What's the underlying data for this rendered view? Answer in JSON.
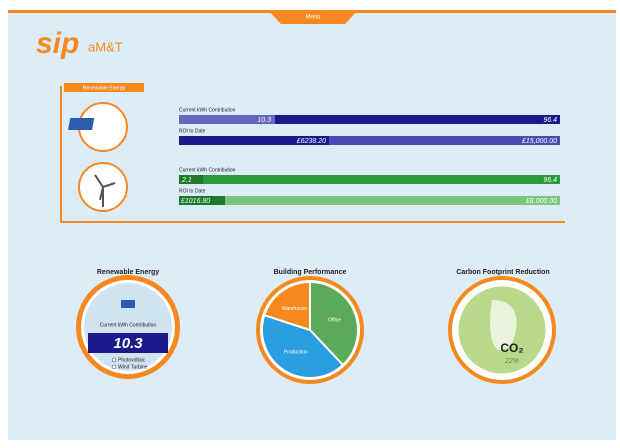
{
  "menu": "Menu",
  "logo": {
    "brand": "sip",
    "suffix": "aM&T"
  },
  "renewable_panel": {
    "title": "Renewable Energy",
    "solar": {
      "kwh_label": "Current kWh Contribution",
      "kwh_value": "10.3",
      "kwh_max": "96.4",
      "roi_label": "ROI to Date",
      "roi_value": "£6238.20",
      "roi_target": "£15,000.00"
    },
    "wind": {
      "kwh_label": "Current kWh Contribution",
      "kwh_value": "2.1",
      "kwh_max": "96.4",
      "roi_label": "ROI to Date",
      "roi_value": "£1016.80",
      "roi_target": "£8,000.00"
    }
  },
  "widgets": {
    "renewable": {
      "title": "Renewable Energy",
      "label": "Current kWh Contribution",
      "value": "10.3",
      "options": [
        "Photovoltaic",
        "Wind Turbine"
      ]
    },
    "building": {
      "title": "Building Performance",
      "chart_data": {
        "type": "pie",
        "categories": [
          "Office",
          "Production",
          "Warehouse"
        ],
        "values": [
          38,
          42,
          20
        ],
        "colors": [
          "#5aaa5a",
          "#2a9ee0",
          "#f5891e"
        ]
      }
    },
    "carbon": {
      "title": "Carbon Footprint Reduction",
      "badge": "CO₂",
      "percent": "22%"
    }
  }
}
